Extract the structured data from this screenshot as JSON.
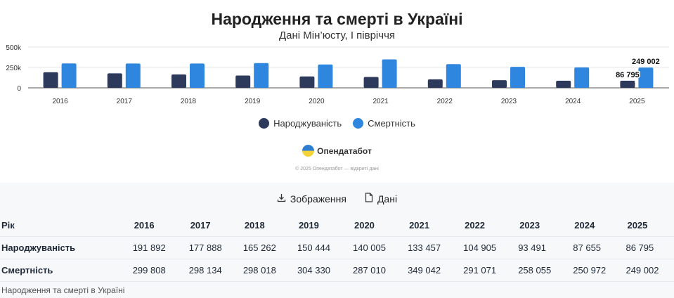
{
  "title": "Народження та смерті в Україні",
  "subtitle": "Дані Мін’юсту, I півріччя",
  "legend": {
    "births": "Народжуваність",
    "deaths": "Смертність"
  },
  "brand": "Опендатабот",
  "credits": "© 2025 Опендатабот — відкриті дані",
  "toolbar": {
    "image_label": "Зображення",
    "data_label": "Дані"
  },
  "table": {
    "header": [
      "Рік",
      "2016",
      "2017",
      "2018",
      "2019",
      "2020",
      "2021",
      "2022",
      "2023",
      "2024",
      "2025"
    ],
    "rows": [
      [
        "Народжуваність",
        "191 892",
        "177 888",
        "165 262",
        "150 444",
        "140 005",
        "133 457",
        "104 905",
        "93 491",
        "87 655",
        "86 795"
      ],
      [
        "Смертність",
        "299 808",
        "298 134",
        "298 018",
        "304 330",
        "287 010",
        "349 042",
        "291 071",
        "258 055",
        "250 972",
        "249 002"
      ]
    ]
  },
  "caption": "Народження та смерті в Україні",
  "colors": {
    "births": "#2e3a5c",
    "deaths": "#2f86de"
  },
  "chart_data": {
    "type": "bar",
    "title": "Народження та смерті в Україні",
    "subtitle": "Дані Мін’юсту, I півріччя",
    "categories": [
      "2016",
      "2017",
      "2018",
      "2019",
      "2020",
      "2021",
      "2022",
      "2023",
      "2024",
      "2025"
    ],
    "series": [
      {
        "name": "Народжуваність",
        "color": "#2e3a5c",
        "values": [
          191892,
          177888,
          165262,
          150444,
          140005,
          133457,
          104905,
          93491,
          87655,
          86795
        ]
      },
      {
        "name": "Смертність",
        "color": "#2f86de",
        "values": [
          299808,
          298134,
          298018,
          304330,
          287010,
          349042,
          291071,
          258055,
          250972,
          249002
        ]
      }
    ],
    "yticks": [
      "0",
      "250k",
      "500k"
    ],
    "ylim": [
      0,
      500000
    ],
    "data_labels": [
      {
        "series": 0,
        "index": 9,
        "text": "86 795"
      },
      {
        "series": 1,
        "index": 9,
        "text": "249 002"
      }
    ],
    "legend_position": "bottom-center",
    "grid": true
  }
}
